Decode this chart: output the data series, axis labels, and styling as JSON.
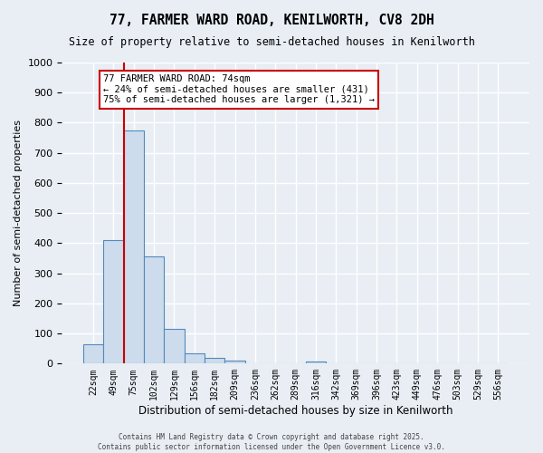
{
  "title1": "77, FARMER WARD ROAD, KENILWORTH, CV8 2DH",
  "title2": "Size of property relative to semi-detached houses in Kenilworth",
  "xlabel": "Distribution of semi-detached houses by size in Kenilworth",
  "ylabel": "Number of semi-detached properties",
  "categories": [
    "22sqm",
    "49sqm",
    "75sqm",
    "102sqm",
    "129sqm",
    "156sqm",
    "182sqm",
    "209sqm",
    "236sqm",
    "262sqm",
    "289sqm",
    "316sqm",
    "342sqm",
    "369sqm",
    "396sqm",
    "423sqm",
    "449sqm",
    "476sqm",
    "503sqm",
    "529sqm",
    "556sqm"
  ],
  "values": [
    65,
    410,
    775,
    355,
    115,
    35,
    18,
    10,
    0,
    0,
    0,
    8,
    0,
    0,
    0,
    0,
    0,
    0,
    0,
    0,
    0
  ],
  "bar_color": "#ccdcec",
  "bar_edge_color": "#5588bb",
  "vline_x_index": 2,
  "vline_color": "#cc0000",
  "annotation_line1": "77 FARMER WARD ROAD: 74sqm",
  "annotation_line2": "← 24% of semi-detached houses are smaller (431)",
  "annotation_line3": "75% of semi-detached houses are larger (1,321) →",
  "annotation_box_edge_color": "#cc0000",
  "background_color": "#e8eef4",
  "grid_color": "#ffffff",
  "ylim": [
    0,
    1000
  ],
  "yticks": [
    0,
    100,
    200,
    300,
    400,
    500,
    600,
    700,
    800,
    900,
    1000
  ],
  "footer1": "Contains HM Land Registry data © Crown copyright and database right 2025.",
  "footer2": "Contains public sector information licensed under the Open Government Licence v3.0."
}
